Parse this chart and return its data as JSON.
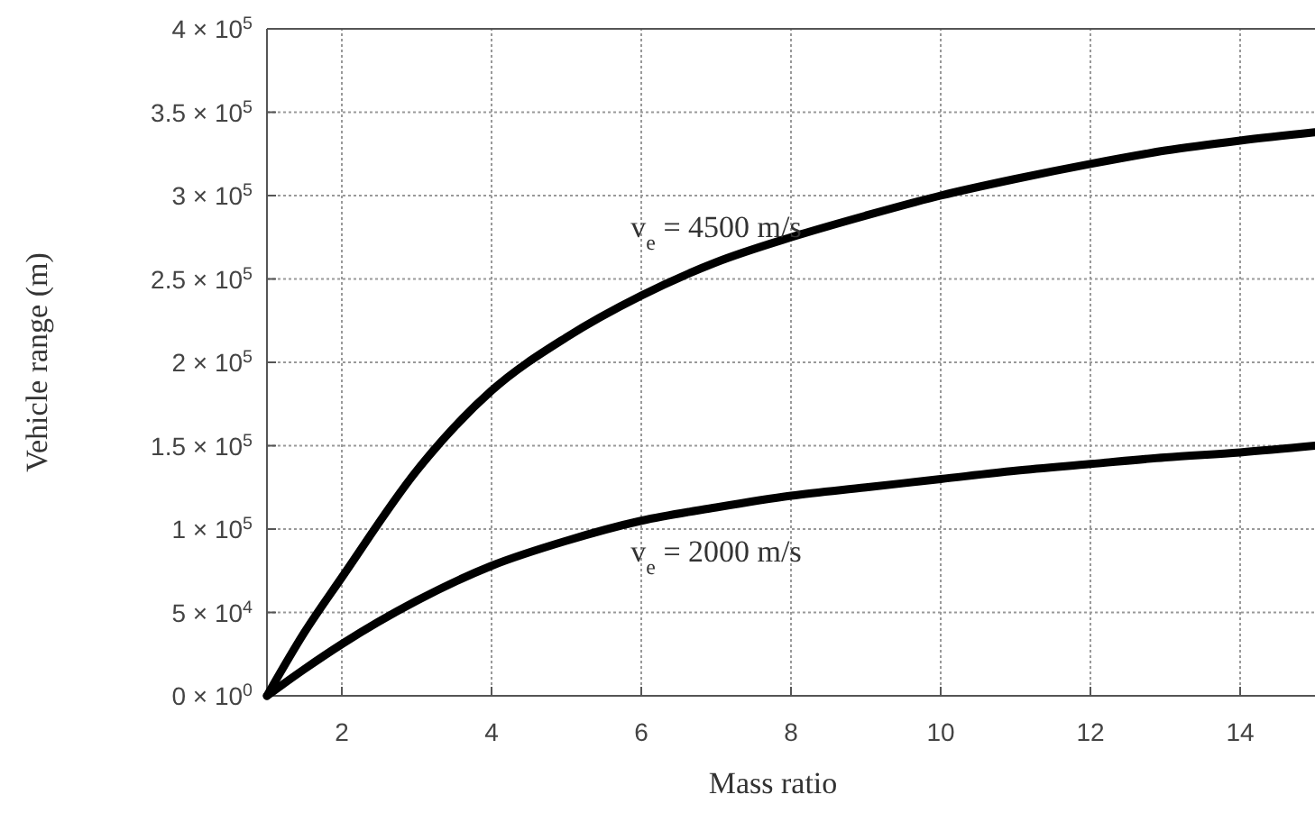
{
  "chart_data": {
    "type": "line",
    "xlabel": "Mass ratio",
    "ylabel": "Vehicle range (m)",
    "xlim": [
      1,
      15
    ],
    "xticks": [
      2,
      4,
      6,
      8,
      10,
      12,
      14
    ],
    "ylim": [
      0,
      400000
    ],
    "yticks": [
      {
        "value": 0,
        "label": "0 × 10$^{0}$"
      },
      {
        "value": 50000,
        "label": "5 × 10$^{4}$"
      },
      {
        "value": 100000,
        "label": "1 × 10$^{5}$"
      },
      {
        "value": 150000,
        "label": "1.5 × 10$^{5}$"
      },
      {
        "value": 200000,
        "label": "2 × 10$^{5}$"
      },
      {
        "value": 250000,
        "label": "2.5 × 10$^{5}$"
      },
      {
        "value": 300000,
        "label": "3 × 10$^{5}$"
      },
      {
        "value": 350000,
        "label": "3.5 × 10$^{5}$"
      },
      {
        "value": 400000,
        "label": "4 × 10$^{5}$"
      }
    ],
    "grid": true,
    "legend": false,
    "marker": "none",
    "line_style": "solid",
    "x": [
      1,
      1.5,
      2,
      3,
      4,
      5,
      6,
      7,
      8,
      9,
      10,
      11,
      12,
      13,
      14,
      15
    ],
    "series": [
      {
        "name": "v$_{e}$ = 4500 m/s",
        "color": "#000000",
        "values": [
          0,
          38000,
          71000,
          135000,
          183000,
          215000,
          240000,
          260000,
          275000,
          288000,
          300000,
          310000,
          319000,
          327000,
          333000,
          338000
        ]
      },
      {
        "name": "v$_{e}$ = 2000 m/s",
        "color": "#000000",
        "values": [
          0,
          16000,
          31000,
          57000,
          78000,
          93000,
          105000,
          113000,
          120000,
          125000,
          130000,
          135000,
          139000,
          143000,
          146000,
          150000
        ]
      }
    ]
  }
}
